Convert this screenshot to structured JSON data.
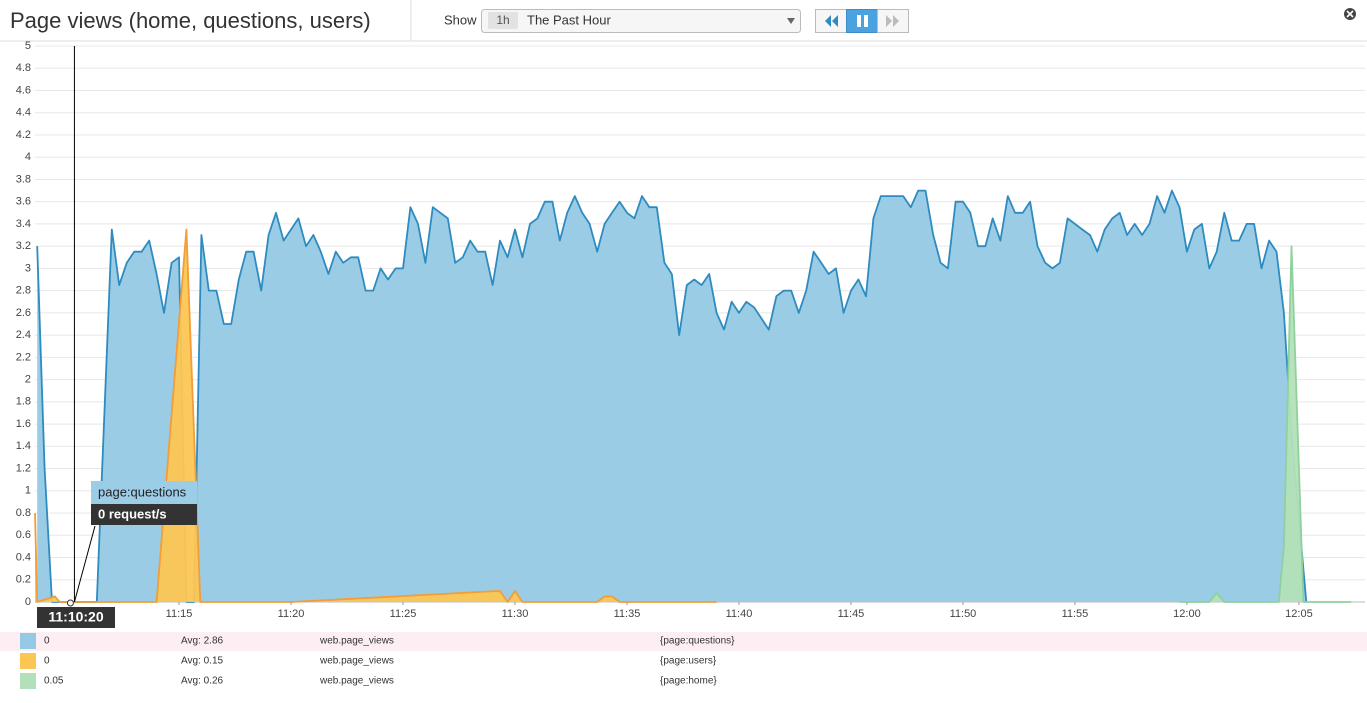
{
  "header": {
    "title": "Page views (home, questions, users)",
    "show_label": "Show",
    "range_short": "1h",
    "range_label": "The Past Hour"
  },
  "chart_data": {
    "type": "area",
    "xlim": [
      668.57,
      727.95
    ],
    "ylim": [
      0,
      5
    ],
    "xticks": [
      {
        "value": 675,
        "label": "11:15"
      },
      {
        "value": 680,
        "label": "11:20"
      },
      {
        "value": 685,
        "label": "11:25"
      },
      {
        "value": 690,
        "label": "11:30"
      },
      {
        "value": 695,
        "label": "11:35"
      },
      {
        "value": 700,
        "label": "11:40"
      },
      {
        "value": 705,
        "label": "11:45"
      },
      {
        "value": 710,
        "label": "11:50"
      },
      {
        "value": 715,
        "label": "11:55"
      },
      {
        "value": 720,
        "label": "12:00"
      },
      {
        "value": 725,
        "label": "12:05"
      }
    ],
    "yticks": [
      0,
      0.2,
      0.4,
      0.6,
      0.8,
      1,
      1.2,
      1.4,
      1.6,
      1.8,
      2,
      2.2,
      2.4,
      2.6,
      2.8,
      3,
      3.2,
      3.4,
      3.6,
      3.8,
      4,
      4.2,
      4.4,
      4.6,
      4.8,
      5
    ],
    "grid": true,
    "hover": {
      "x": 670.33,
      "time_label": "11:10:20",
      "series_label": "page:questions",
      "value_label": "0 request/s"
    },
    "series": [
      {
        "name": "{page:questions}",
        "metric": "web.page_views",
        "current": 0,
        "avg_label": "Avg: 2.86",
        "color": "#95cae4",
        "line_color": "#2e8bc0",
        "x": [
          668.67,
          669,
          669.33,
          671.33,
          672,
          672.33,
          672.67,
          673,
          673.33,
          673.67,
          674,
          674.33,
          674.67,
          675,
          675.33,
          675.67,
          676,
          676.33,
          676.67,
          677,
          677.33,
          677.67,
          678,
          678.33,
          678.67,
          679,
          679.33,
          679.67,
          680,
          680.33,
          680.67,
          681,
          681.33,
          681.67,
          682,
          682.33,
          682.67,
          683,
          683.33,
          683.67,
          684,
          684.33,
          684.67,
          685,
          685.33,
          685.67,
          686,
          686.33,
          686.67,
          687,
          687.33,
          687.67,
          688,
          688.33,
          688.67,
          689,
          689.33,
          689.67,
          690,
          690.33,
          690.67,
          691,
          691.33,
          691.67,
          692,
          692.33,
          692.67,
          693,
          693.33,
          693.67,
          694,
          694.33,
          694.67,
          695,
          695.33,
          695.67,
          696,
          696.33,
          696.67,
          697,
          697.33,
          697.67,
          698,
          698.33,
          698.67,
          699,
          699.33,
          699.67,
          700,
          700.33,
          700.67,
          701,
          701.33,
          701.67,
          702,
          702.33,
          702.67,
          703,
          703.33,
          703.67,
          704,
          704.33,
          704.67,
          705,
          705.33,
          705.67,
          706,
          706.33,
          706.67,
          707,
          707.33,
          707.67,
          708,
          708.33,
          708.67,
          709,
          709.33,
          709.67,
          710,
          710.33,
          710.67,
          711,
          711.33,
          711.67,
          712,
          712.33,
          712.67,
          713,
          713.33,
          713.67,
          714,
          714.33,
          714.67,
          715,
          715.33,
          715.67,
          716,
          716.33,
          716.67,
          717,
          717.33,
          717.67,
          718,
          718.33,
          718.67,
          719,
          719.33,
          719.67,
          720,
          720.33,
          720.67,
          721,
          721.33,
          721.67,
          722,
          722.33,
          722.67,
          723,
          723.33,
          723.67,
          724,
          724.33,
          724.67,
          725.33
        ],
        "values": [
          3.2,
          1.2,
          0,
          0,
          3.35,
          2.85,
          3.05,
          3.15,
          3.15,
          3.25,
          2.95,
          2.6,
          3.05,
          3.1,
          0,
          0,
          3.3,
          2.8,
          2.8,
          2.5,
          2.5,
          2.9,
          3.15,
          3.15,
          2.8,
          3.3,
          3.5,
          3.25,
          3.35,
          3.45,
          3.2,
          3.3,
          3.15,
          2.95,
          3.15,
          3.05,
          3.1,
          3.1,
          2.8,
          2.8,
          3.0,
          2.9,
          3.0,
          3.0,
          3.55,
          3.4,
          3.05,
          3.55,
          3.5,
          3.45,
          3.05,
          3.1,
          3.25,
          3.15,
          3.15,
          2.85,
          3.25,
          3.1,
          3.35,
          3.1,
          3.4,
          3.45,
          3.6,
          3.6,
          3.25,
          3.5,
          3.65,
          3.5,
          3.4,
          3.15,
          3.4,
          3.5,
          3.6,
          3.5,
          3.45,
          3.65,
          3.55,
          3.55,
          3.05,
          2.95,
          2.4,
          2.85,
          2.9,
          2.85,
          2.95,
          2.6,
          2.45,
          2.7,
          2.6,
          2.7,
          2.65,
          2.55,
          2.45,
          2.75,
          2.8,
          2.8,
          2.6,
          2.8,
          3.15,
          3.05,
          2.95,
          3.0,
          2.6,
          2.8,
          2.9,
          2.75,
          3.45,
          3.65,
          3.65,
          3.65,
          3.65,
          3.55,
          3.7,
          3.7,
          3.3,
          3.05,
          3.0,
          3.6,
          3.6,
          3.5,
          3.2,
          3.2,
          3.45,
          3.25,
          3.65,
          3.5,
          3.5,
          3.6,
          3.2,
          3.05,
          3.0,
          3.05,
          3.45,
          3.4,
          3.35,
          3.3,
          3.15,
          3.35,
          3.45,
          3.5,
          3.3,
          3.4,
          3.3,
          3.4,
          3.65,
          3.5,
          3.7,
          3.55,
          3.15,
          3.35,
          3.4,
          3.0,
          3.15,
          3.5,
          3.25,
          3.25,
          3.4,
          3.4,
          3.0,
          3.25,
          3.15,
          2.6,
          1.5,
          0
        ]
      },
      {
        "name": "{page:users}",
        "metric": "web.page_views",
        "current": 0,
        "avg_label": "Avg: 0.15",
        "color": "#fcc654",
        "line_color": "#f29d38",
        "x": [
          668.57,
          668.67,
          669.46,
          669.67,
          674,
          675.33,
          675.95,
          680,
          689.33,
          689.67,
          690,
          690.33,
          693.67,
          694,
          694.33,
          694.67,
          699
        ],
        "values": [
          0.8,
          0,
          0.05,
          0,
          0,
          3.35,
          0,
          0,
          0.1,
          0,
          0.1,
          0,
          0,
          0.05,
          0.05,
          0,
          0
        ]
      },
      {
        "name": "{page:home}",
        "metric": "web.page_views",
        "current": 0.05,
        "avg_label": "Avg: 0.26",
        "color": "#b3e0b8",
        "line_color": "#8fd19e",
        "x": [
          719.67,
          721,
          721.33,
          721.67,
          724.1,
          724.33,
          724.67,
          725.2,
          727.33
        ],
        "values": [
          0,
          0,
          0.08,
          0,
          0,
          0.5,
          3.2,
          0,
          0
        ]
      }
    ]
  }
}
